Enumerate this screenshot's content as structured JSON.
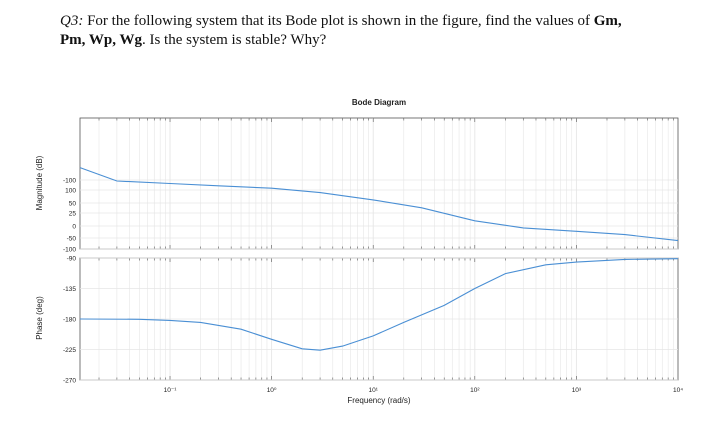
{
  "question": {
    "label": "Q3:",
    "text_1": " For the following system that its Bode plot is shown in the figure, find the values of ",
    "bold_1": "Gm,",
    "text_2": "",
    "bold_2": "Pm, Wp, Wg",
    "text_3": ". Is the system is stable? Why?"
  },
  "colors": {
    "line": "#4a8fd4",
    "grid": "#e6e6e6",
    "axis": "#555555",
    "background": "#ffffff"
  },
  "chart_data": {
    "type": "line",
    "title": "Bode Diagram",
    "xlabel": "Frequency  (rad/s)",
    "xscale": "log",
    "xlim": [
      0.013,
      10000
    ],
    "xticks": [
      {
        "value": 0.1,
        "label": "10⁻¹"
      },
      {
        "value": 1,
        "label": "10⁰"
      },
      {
        "value": 10,
        "label": "10¹"
      },
      {
        "value": 100,
        "label": "10²"
      },
      {
        "value": 1000,
        "label": "10³"
      },
      {
        "value": 10000,
        "label": "10⁴"
      }
    ],
    "grid": true,
    "panels": [
      {
        "name": "magnitude",
        "ylabel": "Magnitude (dB)",
        "yticks": [
          {
            "value": 100,
            "label": "100"
          },
          {
            "value": 50,
            "label": "50"
          },
          {
            "value": 25,
            "label": "25"
          },
          {
            "value": 0,
            "label": "0"
          },
          {
            "value": -50,
            "label": "-50"
          },
          {
            "value": -100,
            "label": "-100"
          }
        ],
        "extra_tick": {
          "value": 200,
          "label": "-100"
        },
        "x": [
          0.013,
          0.03,
          0.1,
          0.3,
          1,
          3,
          10,
          30,
          100,
          300,
          1000,
          3000,
          10000
        ],
        "y": [
          210,
          190,
          165,
          142,
          118,
          90,
          62,
          38,
          10,
          -8,
          -22,
          -36,
          -62
        ]
      },
      {
        "name": "phase",
        "ylabel": "Phase (deg)",
        "ylim": [
          -270,
          -90
        ],
        "yticks": [
          {
            "value": -90,
            "label": "-90"
          },
          {
            "value": -135,
            "label": "-135"
          },
          {
            "value": -180,
            "label": "-180"
          },
          {
            "value": -225,
            "label": "-225"
          },
          {
            "value": -270,
            "label": "-270"
          }
        ],
        "x": [
          0.013,
          0.05,
          0.1,
          0.2,
          0.5,
          1,
          2,
          3,
          5,
          10,
          20,
          50,
          100,
          200,
          500,
          1000,
          3000,
          10000
        ],
        "y": [
          -180,
          -180.5,
          -182,
          -185,
          -195,
          -210,
          -224,
          -226,
          -220,
          -205,
          -185,
          -160,
          -135,
          -113,
          -100,
          -96,
          -92,
          -91
        ]
      }
    ]
  }
}
